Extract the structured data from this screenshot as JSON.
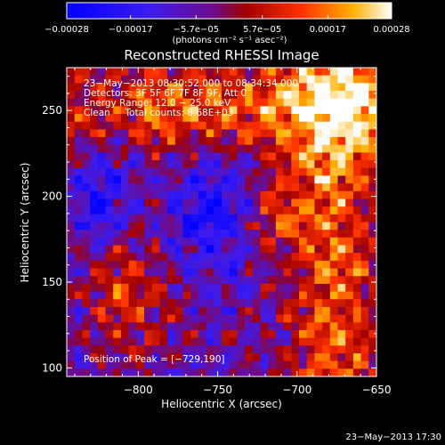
{
  "chart_data": {
    "type": "heatmap",
    "title": "Reconstructed RHESSI Image",
    "xlabel": "Heliocentric X (arcsec)",
    "ylabel": "Heliocentric Y (arcsec)",
    "xlim": [
      -845,
      -650
    ],
    "ylim": [
      95,
      275
    ],
    "xticks": [
      -800,
      -750,
      -700,
      -650
    ],
    "yticks": [
      100,
      150,
      200,
      250
    ],
    "xtick_labels": [
      "−800",
      "−750",
      "−700",
      "−650"
    ],
    "ytick_labels": [
      "100",
      "150",
      "200",
      "250"
    ],
    "colorbar": {
      "label": "(photons cm⁻² s⁻¹ asec⁻²)",
      "range": [
        -0.00028,
        0.00028
      ],
      "ticks": [
        -0.00028,
        -0.00017,
        -5.7e-05,
        5.7e-05,
        0.00017,
        0.00028
      ],
      "tick_labels": [
        "−0.00028",
        "−0.00017",
        "−5.7e−05",
        "5.7e−05",
        "0.00017",
        "0.00028"
      ]
    },
    "annotations": [
      "23−May−2013 08:30:52.000 to 08:34:34.000",
      "Detectors: 3F 5F 6F 7F 8F 9F, Att 0",
      "Energy Range: 12.0 − 25.0 keV",
      "Clean     Total counts: 8.68E+03"
    ],
    "peak_label": "Position of Peak = [−729,190]",
    "peak_position": [
      -729,
      190
    ],
    "footer_timestamp": "23−May−2013 17:30",
    "colors": {
      "background": "#000000",
      "text": "#ffffff"
    }
  }
}
